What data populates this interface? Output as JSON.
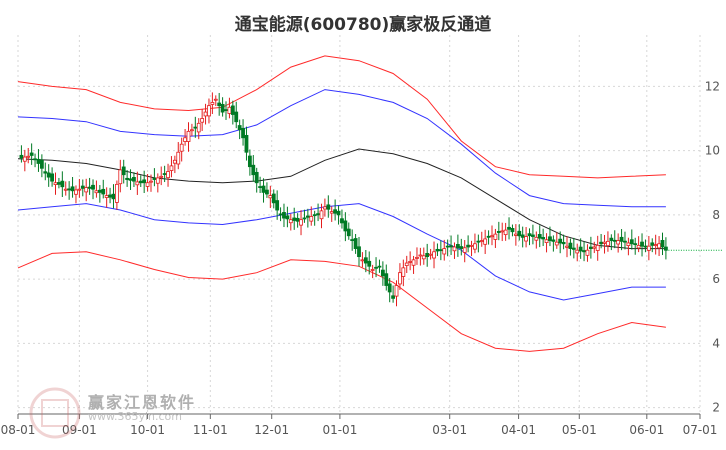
{
  "chart_data": {
    "type": "candlestick-channel",
    "title": "通宝能源(600780)赢家极反通道",
    "x_labels": [
      "08-01",
      "09-01",
      "10-01",
      "11-01",
      "12-01",
      "01-01",
      "03-01",
      "04-01",
      "05-01",
      "06-01",
      "07-01"
    ],
    "y_ticks": [
      2,
      4,
      6,
      8,
      10,
      12
    ],
    "ylim": [
      1.8,
      13.6
    ],
    "grid": true,
    "last_price": 6.9,
    "series": [
      {
        "key": "price",
        "x": [
          0,
          10,
          20,
          30,
          40,
          50,
          60,
          70,
          80,
          90,
          100,
          110,
          120,
          130,
          140,
          150,
          160,
          170,
          180,
          190,
          200,
          210,
          220,
          230,
          240,
          250,
          260,
          270,
          280,
          290,
          300,
          310,
          320,
          330,
          340,
          350,
          360,
          370,
          380,
          390,
          400,
          410,
          420,
          430,
          440,
          450,
          460,
          470,
          480,
          490,
          500,
          510,
          520,
          530,
          540,
          550,
          560,
          570,
          580,
          590,
          600,
          610,
          620,
          630
        ],
        "y": [
          9.75,
          9.8,
          9.85,
          9.6,
          9.3,
          9.05,
          8.95,
          8.8,
          8.75,
          8.8,
          8.85,
          8.8,
          8.7,
          8.6,
          8.5,
          9.4,
          9.1,
          9.05,
          9.0,
          9.0,
          9.1,
          9.2,
          9.35,
          9.7,
          10.2,
          10.6,
          10.7,
          11.0,
          11.4,
          11.6,
          11.2,
          11.35,
          10.9,
          10.4,
          9.5,
          9.0,
          8.7,
          8.6,
          8.15,
          7.9,
          7.85,
          7.8,
          7.9,
          7.95,
          8.0,
          8.25,
          8.1,
          8.0,
          7.5,
          7.2,
          6.7,
          6.5,
          6.3,
          6.4,
          5.8,
          5.4,
          6.2,
          6.5,
          6.6,
          6.75,
          6.7,
          6.85,
          6.9,
          7.0
        ]
      },
      {
        "key": "price_cont",
        "x": [
          640,
          650,
          660,
          670,
          680,
          690,
          700,
          710,
          720,
          730,
          740,
          750,
          760,
          770,
          780,
          790,
          800,
          810,
          820,
          830,
          840,
          850,
          860,
          870,
          880,
          890,
          900,
          910,
          920,
          930,
          940,
          950
        ],
        "y": [
          7.0,
          6.95,
          7.0,
          7.1,
          7.2,
          7.3,
          7.4,
          7.5,
          7.55,
          7.4,
          7.3,
          7.35,
          7.3,
          7.25,
          7.2,
          7.15,
          7.1,
          6.95,
          6.9,
          6.85,
          6.95,
          7.05,
          7.15,
          7.2,
          7.2,
          7.15,
          7.1,
          7.05,
          7.0,
          7.05,
          7.1,
          6.9
        ]
      },
      {
        "key": "ma",
        "x": [
          0,
          50,
          100,
          150,
          200,
          250,
          300,
          350,
          400,
          450,
          500,
          550,
          600,
          650,
          700,
          750,
          800,
          850,
          900,
          950
        ],
        "y": [
          9.75,
          9.7,
          9.6,
          9.4,
          9.15,
          9.05,
          9.0,
          9.05,
          9.2,
          9.7,
          10.05,
          9.9,
          9.6,
          9.15,
          8.5,
          7.85,
          7.35,
          7.05,
          6.95,
          6.95
        ]
      },
      {
        "key": "upper_blue",
        "x": [
          0,
          50,
          100,
          150,
          200,
          250,
          300,
          350,
          400,
          450,
          500,
          550,
          600,
          650,
          700,
          750,
          800,
          850,
          900,
          950
        ],
        "y": [
          11.05,
          11.0,
          10.9,
          10.6,
          10.5,
          10.45,
          10.5,
          10.8,
          11.4,
          11.9,
          11.75,
          11.5,
          11.0,
          10.2,
          9.3,
          8.6,
          8.35,
          8.3,
          8.25,
          8.25
        ]
      },
      {
        "key": "lower_blue",
        "x": [
          0,
          50,
          100,
          150,
          200,
          250,
          300,
          350,
          400,
          450,
          500,
          550,
          600,
          650,
          700,
          750,
          800,
          850,
          900,
          950
        ],
        "y": [
          8.15,
          8.25,
          8.35,
          8.15,
          7.85,
          7.75,
          7.7,
          7.85,
          8.05,
          8.25,
          8.35,
          7.95,
          7.4,
          6.9,
          6.1,
          5.6,
          5.35,
          5.55,
          5.75,
          5.75
        ]
      },
      {
        "key": "upper_red",
        "x": [
          0,
          50,
          100,
          150,
          200,
          250,
          300,
          350,
          400,
          450,
          500,
          550,
          600,
          650,
          700,
          750,
          800,
          850,
          900,
          950
        ],
        "y": [
          12.15,
          12.0,
          11.9,
          11.5,
          11.3,
          11.25,
          11.35,
          11.9,
          12.6,
          12.95,
          12.8,
          12.4,
          11.6,
          10.3,
          9.5,
          9.25,
          9.2,
          9.15,
          9.2,
          9.25
        ]
      },
      {
        "key": "lower_red",
        "x": [
          0,
          50,
          100,
          150,
          200,
          250,
          300,
          350,
          400,
          450,
          500,
          550,
          600,
          650,
          700,
          750,
          800,
          850,
          900,
          950
        ],
        "y": [
          6.35,
          6.8,
          6.85,
          6.6,
          6.3,
          6.05,
          6.0,
          6.2,
          6.6,
          6.55,
          6.4,
          5.9,
          5.1,
          4.3,
          3.85,
          3.75,
          3.85,
          4.3,
          4.65,
          4.5
        ]
      }
    ],
    "colors": {
      "upper_red": "#ff2a2a",
      "lower_red": "#ff2a2a",
      "blue": "#3333ff",
      "ma": "#222222",
      "up": "#e41c1c",
      "down": "#007a24",
      "grid": "#d7d7d7",
      "tick": "#555555",
      "last": "#00aa33"
    },
    "watermark": {
      "brand": "赢家江恩软件",
      "url": "www.365yin.com"
    }
  }
}
